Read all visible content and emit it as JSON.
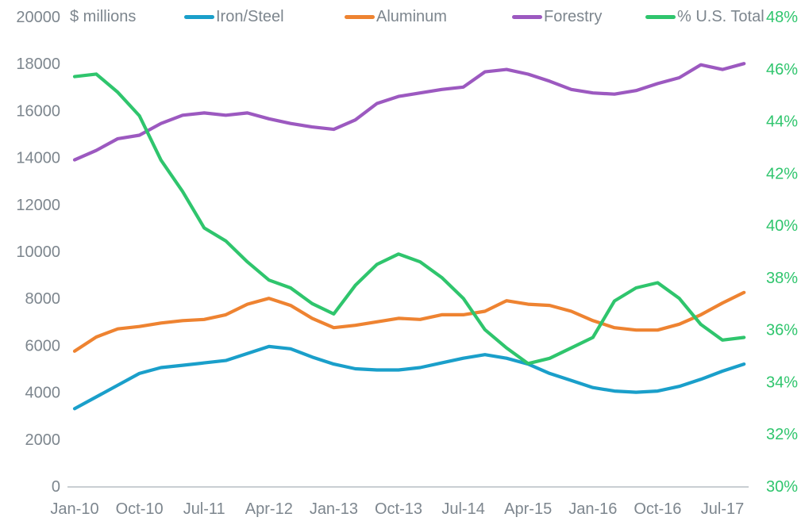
{
  "colors": {
    "background": "#ffffff",
    "text_gray": "#7d868e",
    "axis_line": "#c9ced3",
    "iron_steel": "#1a9fca",
    "aluminum": "#ee8331",
    "forestry": "#9c59c0",
    "us_total_green": "#2fc56d"
  },
  "chart_data": {
    "type": "line",
    "title": "",
    "grid": false,
    "legend_position": "top",
    "y_left": {
      "label": "$ millions",
      "min": 0,
      "max": 20000,
      "tick_step": 2000,
      "tick_labels": [
        "0",
        "2000",
        "4000",
        "6000",
        "8000",
        "10000",
        "12000",
        "14000",
        "16000",
        "18000",
        "20000"
      ]
    },
    "y_right": {
      "label": "% U.S. Total",
      "min": 30,
      "max": 48,
      "tick_step": 2,
      "unit": "%",
      "tick_labels": [
        "30%",
        "32%",
        "34%",
        "36%",
        "38%",
        "40%",
        "42%",
        "44%",
        "46%",
        "48%"
      ]
    },
    "x": {
      "categories": [
        "Jan-10",
        "Apr-10",
        "Jul-10",
        "Oct-10",
        "Jan-11",
        "Apr-11",
        "Jul-11",
        "Oct-11",
        "Jan-12",
        "Apr-12",
        "Jul-12",
        "Oct-12",
        "Jan-13",
        "Apr-13",
        "Jul-13",
        "Oct-13",
        "Jan-14",
        "Apr-14",
        "Jul-14",
        "Oct-14",
        "Jan-15",
        "Apr-15",
        "Jul-15",
        "Oct-15",
        "Jan-16",
        "Apr-16",
        "Jul-16",
        "Oct-16",
        "Jan-17",
        "Apr-17",
        "Jul-17",
        "Oct-17"
      ],
      "tick_labels": [
        "Jan-10",
        "Oct-10",
        "Jul-11",
        "Apr-12",
        "Jan-13",
        "Oct-13",
        "Jul-14",
        "Apr-15",
        "Jan-16",
        "Oct-16",
        "Jul-17"
      ],
      "ticks_every_n_points": 3
    },
    "series": [
      {
        "name": "Iron/Steel",
        "axis": "left",
        "color": "#1a9fca",
        "values": [
          3300,
          3800,
          4300,
          4800,
          5050,
          5150,
          5250,
          5350,
          5650,
          5950,
          5850,
          5500,
          5200,
          5000,
          4950,
          4950,
          5050,
          5250,
          5450,
          5600,
          5450,
          5200,
          4800,
          4500,
          4200,
          4050,
          4000,
          4050,
          4250,
          4550,
          4900,
          5200
        ]
      },
      {
        "name": "Aluminum",
        "axis": "left",
        "color": "#ee8331",
        "values": [
          5750,
          6350,
          6700,
          6800,
          6950,
          7050,
          7100,
          7300,
          7750,
          8000,
          7700,
          7150,
          6750,
          6850,
          7000,
          7150,
          7100,
          7300,
          7300,
          7450,
          7900,
          7750,
          7700,
          7450,
          7050,
          6750,
          6650,
          6650,
          6900,
          7300,
          7800,
          8250
        ]
      },
      {
        "name": "Forestry",
        "axis": "left",
        "color": "#9c59c0",
        "values": [
          13900,
          14300,
          14800,
          14950,
          15450,
          15800,
          15900,
          15800,
          15900,
          15650,
          15450,
          15300,
          15200,
          15600,
          16300,
          16600,
          16750,
          16900,
          17000,
          17650,
          17750,
          17550,
          17250,
          16900,
          16750,
          16700,
          16850,
          17150,
          17400,
          17950,
          17750,
          18000
        ]
      },
      {
        "name": "% U.S. Total",
        "axis": "right",
        "color": "#2fc56d",
        "values": [
          45.7,
          45.8,
          45.1,
          44.2,
          42.5,
          41.3,
          39.9,
          39.4,
          38.6,
          37.9,
          37.6,
          37.0,
          36.6,
          37.7,
          38.5,
          38.9,
          38.6,
          38.0,
          37.2,
          36.0,
          35.3,
          34.7,
          34.9,
          35.3,
          35.7,
          37.1,
          37.6,
          37.8,
          37.2,
          36.2,
          35.6,
          35.7
        ]
      }
    ]
  }
}
